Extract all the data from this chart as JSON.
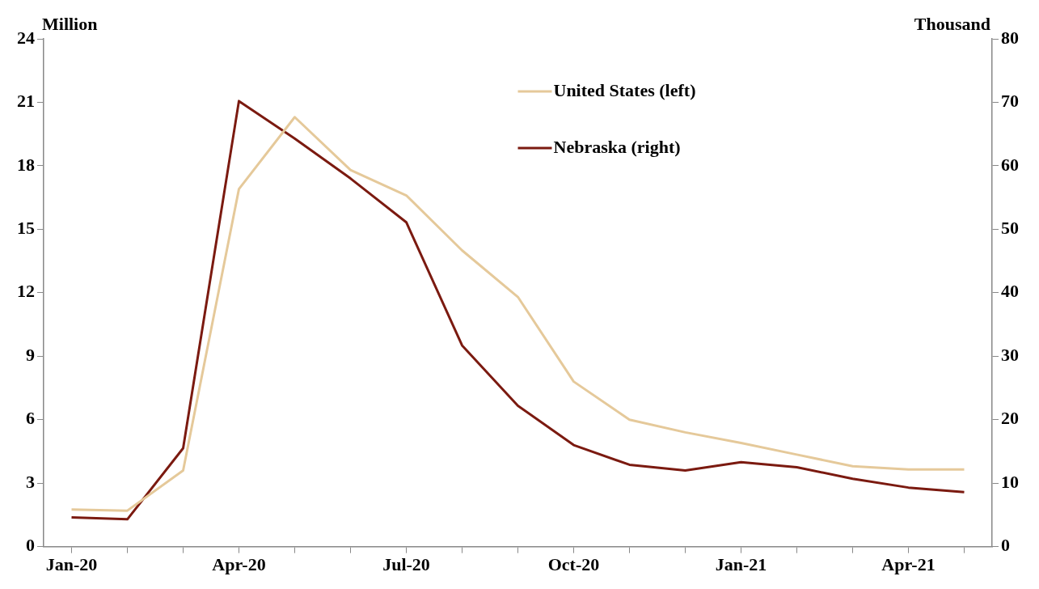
{
  "chart_data": {
    "type": "line",
    "ylabel": "Million",
    "y2label": "Thousand",
    "categories": [
      "Jan-20",
      null,
      null,
      "Apr-20",
      null,
      null,
      "Jul-20",
      null,
      null,
      "Oct-20",
      null,
      null,
      "Jan-21",
      null,
      null,
      "Apr-21",
      null
    ],
    "series": [
      {
        "name": "United States (left)",
        "color": "#e5c99a",
        "values": [
          1.75,
          1.7,
          3.6,
          16.9,
          20.3,
          17.8,
          16.6,
          14.0,
          11.8,
          7.8,
          6.0,
          5.4,
          4.9,
          4.35,
          3.8,
          3.65,
          3.65
        ]
      },
      {
        "name": "Nebraska (right)",
        "color": "#7b1a10",
        "axis": "y2",
        "values": [
          4.6,
          4.3,
          15.5,
          70.2,
          64.3,
          58,
          51.1,
          31.7,
          22.2,
          16.0,
          12.9,
          12.0,
          13.3,
          12.5,
          10.7,
          9.3,
          8.6
        ]
      }
    ],
    "ylim": [
      0,
      24
    ],
    "yticks": [
      0,
      3,
      6,
      9,
      12,
      15,
      18,
      21,
      24
    ],
    "y2lim": [
      0,
      80
    ],
    "y2ticks": [
      0,
      10,
      20,
      30,
      40,
      50,
      60,
      70,
      80
    ],
    "grid": false,
    "legend": "top right",
    "marker": "none",
    "line_style": "solid"
  }
}
